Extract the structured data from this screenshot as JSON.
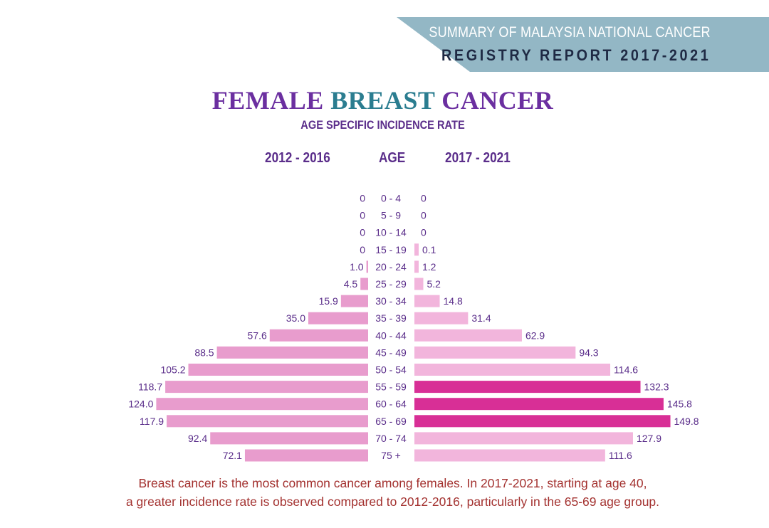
{
  "banner": {
    "line1": "SUMMARY OF MALAYSIA NATIONAL CANCER",
    "line2": "REGISTRY REPORT 2017-2021"
  },
  "title": {
    "part1": "FEMALE",
    "part2": "BREAST",
    "part3": "CANCER"
  },
  "subtitle": "AGE SPECIFIC INCIDENCE RATE",
  "column_headers": {
    "left": "2012 - 2016",
    "middle": "AGE",
    "right": "2017 - 2021"
  },
  "colors": {
    "banner": "#93b7c5",
    "bar_left": "#e89ccd",
    "bar_right": "#f2b5dc",
    "bar_highlight": "#d82f96",
    "label_text": "#5a2d8a",
    "footnote": "#a3312f"
  },
  "chart_data": {
    "type": "bar",
    "orientation": "horizontal-butterfly",
    "title": "FEMALE BREAST CANCER — AGE SPECIFIC INCIDENCE RATE",
    "categories": [
      "0 - 4",
      "5 - 9",
      "10 - 14",
      "15 - 19",
      "20 - 24",
      "25 - 29",
      "30 - 34",
      "35 - 39",
      "40 - 44",
      "45 - 49",
      "50 - 54",
      "55 - 59",
      "60 - 64",
      "65 - 69",
      "70 - 74",
      "75 +"
    ],
    "series": [
      {
        "name": "2012 - 2016",
        "side": "left",
        "values": [
          0,
          0,
          0,
          0,
          1.0,
          4.5,
          15.9,
          35.0,
          57.6,
          88.5,
          105.2,
          118.7,
          124.0,
          117.9,
          92.4,
          72.1
        ],
        "labels": [
          "0",
          "0",
          "0",
          "0",
          "1.0",
          "4.5",
          "15.9",
          "35.0",
          "57.6",
          "88.5",
          "105.2",
          "118.7",
          "124.0",
          "117.9",
          "92.4",
          "72.1"
        ]
      },
      {
        "name": "2017 - 2021",
        "side": "right",
        "values": [
          0,
          0,
          0,
          0.1,
          1.2,
          5.2,
          14.8,
          31.4,
          62.9,
          94.3,
          114.6,
          132.3,
          145.8,
          149.8,
          127.9,
          111.6
        ],
        "labels": [
          "0",
          "0",
          "0",
          "0.1",
          "1.2",
          "5.2",
          "14.8",
          "31.4",
          "62.9",
          "94.3",
          "114.6",
          "132.3",
          "145.8",
          "149.8",
          "127.9",
          "111.6"
        ],
        "highlighted": [
          "55 - 59",
          "60 - 64",
          "65 - 69"
        ]
      }
    ],
    "xlim": [
      0,
      150
    ]
  },
  "footnote": {
    "line1": "Breast cancer is the most common cancer among females. In 2017-2021, starting at age 40,",
    "line2": "a greater incidence rate is observed compared to 2012-2016, particularly in the 65-69 age group."
  }
}
